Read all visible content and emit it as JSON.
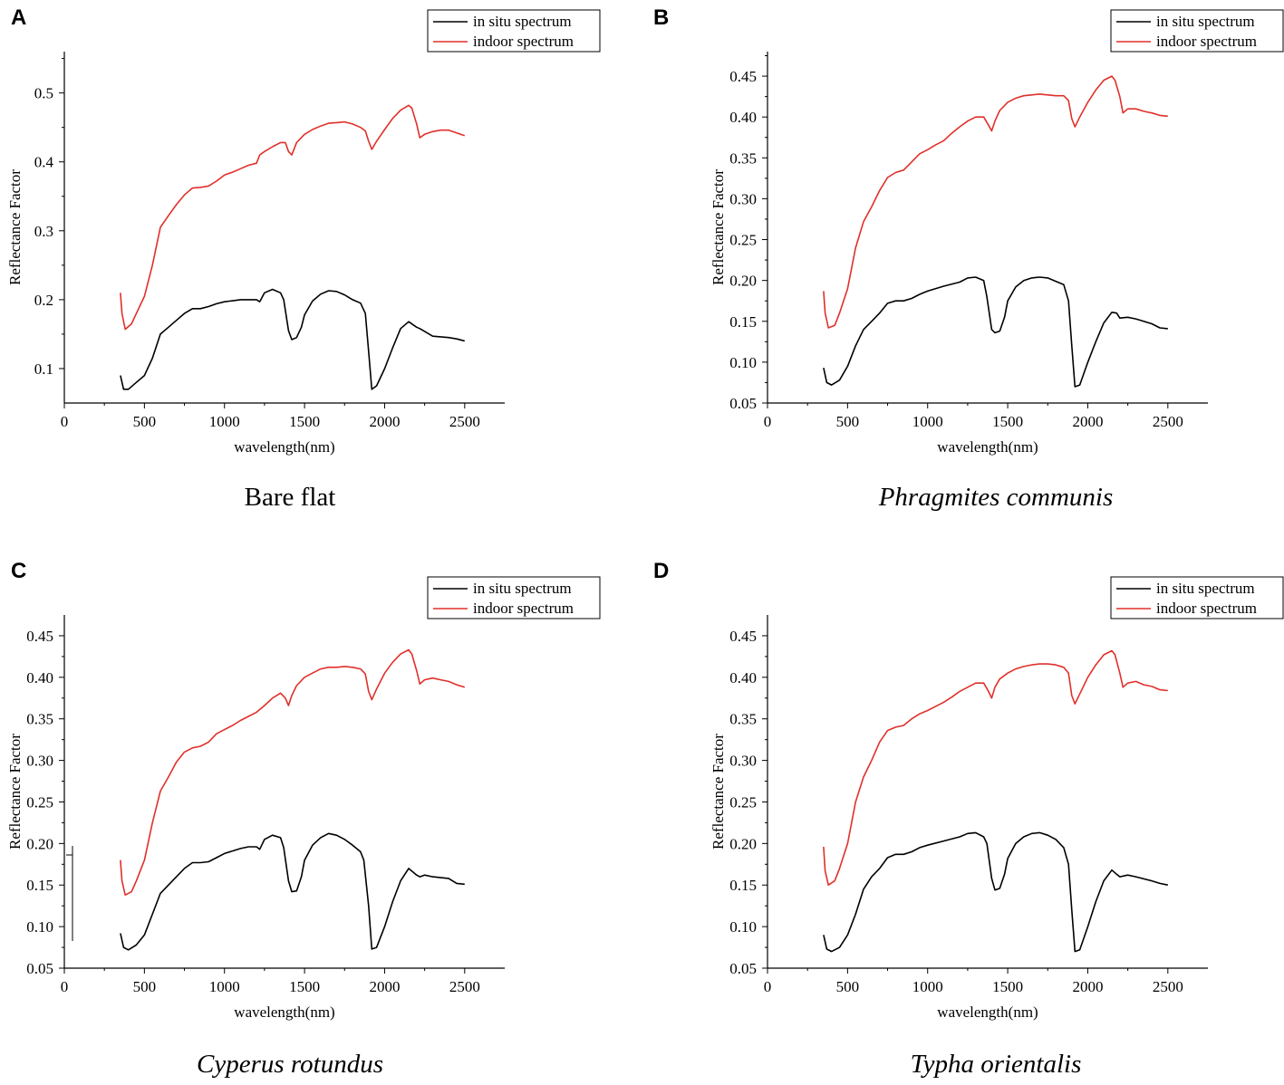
{
  "chart_data": [
    {
      "type": "line",
      "panel": "A",
      "caption": "Bare flat",
      "caption_italic": false,
      "xlabel": "wavelength(nm)",
      "ylabel": "Reflectance Factor",
      "xlim": [
        0,
        2750
      ],
      "ylim": [
        0.05,
        0.56
      ],
      "xticks": [
        0,
        500,
        1000,
        1500,
        2000,
        2500
      ],
      "xtick_labels": [
        "0",
        "500",
        "1000",
        "1500",
        "2000",
        "2500"
      ],
      "yticks": [
        0.1,
        0.2,
        0.3,
        0.4,
        0.5
      ],
      "ytick_labels": [
        "0.1",
        "0.2",
        "0.3",
        "0.4",
        "0.5"
      ],
      "legend": {
        "position": "top-right",
        "entries": [
          "in situ spectrum",
          "indoor spectrum"
        ]
      },
      "series": [
        {
          "name": "in situ spectrum",
          "color": "#000000",
          "x": [
            350,
            370,
            400,
            450,
            500,
            550,
            600,
            650,
            700,
            750,
            800,
            850,
            900,
            950,
            1000,
            1100,
            1150,
            1200,
            1220,
            1250,
            1300,
            1350,
            1370,
            1400,
            1420,
            1450,
            1480,
            1500,
            1550,
            1600,
            1650,
            1700,
            1750,
            1800,
            1850,
            1880,
            1900,
            1920,
            1950,
            2000,
            2050,
            2100,
            2150,
            2200,
            2220,
            2250,
            2300,
            2400,
            2450,
            2500
          ],
          "y": [
            0.09,
            0.07,
            0.07,
            0.08,
            0.09,
            0.115,
            0.15,
            0.16,
            0.17,
            0.18,
            0.187,
            0.187,
            0.19,
            0.194,
            0.197,
            0.2,
            0.2,
            0.2,
            0.197,
            0.21,
            0.215,
            0.21,
            0.2,
            0.155,
            0.142,
            0.145,
            0.16,
            0.178,
            0.198,
            0.208,
            0.213,
            0.212,
            0.207,
            0.2,
            0.195,
            0.18,
            0.125,
            0.07,
            0.075,
            0.1,
            0.13,
            0.158,
            0.168,
            0.16,
            0.158,
            0.154,
            0.147,
            0.145,
            0.143,
            0.14
          ]
        },
        {
          "name": "indoor spectrum",
          "color": "#e0302a",
          "x": [
            350,
            360,
            380,
            420,
            450,
            500,
            550,
            600,
            650,
            700,
            750,
            800,
            850,
            900,
            950,
            1000,
            1050,
            1100,
            1150,
            1200,
            1220,
            1250,
            1300,
            1350,
            1380,
            1400,
            1420,
            1450,
            1500,
            1550,
            1600,
            1650,
            1700,
            1750,
            1800,
            1850,
            1880,
            1900,
            1920,
            1950,
            2000,
            2050,
            2100,
            2150,
            2170,
            2200,
            2220,
            2250,
            2300,
            2350,
            2400,
            2450,
            2500
          ],
          "y": [
            0.21,
            0.18,
            0.157,
            0.165,
            0.18,
            0.205,
            0.25,
            0.305,
            0.322,
            0.338,
            0.352,
            0.362,
            0.363,
            0.365,
            0.372,
            0.381,
            0.385,
            0.39,
            0.395,
            0.398,
            0.41,
            0.415,
            0.422,
            0.428,
            0.428,
            0.415,
            0.41,
            0.428,
            0.44,
            0.447,
            0.452,
            0.456,
            0.457,
            0.458,
            0.455,
            0.45,
            0.445,
            0.43,
            0.418,
            0.43,
            0.447,
            0.463,
            0.475,
            0.482,
            0.478,
            0.455,
            0.435,
            0.44,
            0.444,
            0.446,
            0.446,
            0.442,
            0.438
          ]
        }
      ]
    },
    {
      "type": "line",
      "panel": "B",
      "caption": "Phragmites communis",
      "caption_italic": true,
      "xlabel": "wavelength(nm)",
      "ylabel": "Reflectance Factor",
      "xlim": [
        0,
        2750
      ],
      "ylim": [
        0.05,
        0.48
      ],
      "xticks": [
        0,
        500,
        1000,
        1500,
        2000,
        2500
      ],
      "xtick_labels": [
        "0",
        "500",
        "1000",
        "1500",
        "2000",
        "2500"
      ],
      "yticks": [
        0.05,
        0.1,
        0.15,
        0.2,
        0.25,
        0.3,
        0.35,
        0.4,
        0.45
      ],
      "ytick_labels": [
        "0.05",
        "0.10",
        "0.15",
        "0.20",
        "0.25",
        "0.30",
        "0.35",
        "0.40",
        "0.45"
      ],
      "legend": {
        "position": "top-right",
        "entries": [
          "in situ spectrum",
          "indoor spectrum"
        ]
      },
      "series": [
        {
          "name": "in situ spectrum",
          "color": "#000000",
          "x": [
            350,
            370,
            400,
            450,
            500,
            550,
            600,
            650,
            700,
            750,
            800,
            850,
            900,
            950,
            1000,
            1100,
            1200,
            1250,
            1300,
            1350,
            1370,
            1400,
            1420,
            1450,
            1480,
            1500,
            1550,
            1600,
            1650,
            1700,
            1750,
            1800,
            1850,
            1880,
            1900,
            1920,
            1950,
            2000,
            2050,
            2100,
            2150,
            2180,
            2200,
            2250,
            2300,
            2400,
            2450,
            2500
          ],
          "y": [
            0.093,
            0.075,
            0.072,
            0.078,
            0.095,
            0.12,
            0.14,
            0.15,
            0.16,
            0.172,
            0.175,
            0.175,
            0.178,
            0.183,
            0.187,
            0.193,
            0.198,
            0.203,
            0.204,
            0.2,
            0.18,
            0.14,
            0.136,
            0.138,
            0.155,
            0.175,
            0.192,
            0.2,
            0.203,
            0.204,
            0.203,
            0.199,
            0.195,
            0.175,
            0.12,
            0.07,
            0.072,
            0.1,
            0.125,
            0.148,
            0.161,
            0.16,
            0.154,
            0.155,
            0.153,
            0.147,
            0.142,
            0.141
          ]
        },
        {
          "name": "indoor spectrum",
          "color": "#e0302a",
          "x": [
            350,
            360,
            380,
            420,
            450,
            500,
            550,
            600,
            650,
            700,
            750,
            800,
            850,
            900,
            950,
            1000,
            1050,
            1100,
            1150,
            1200,
            1250,
            1300,
            1350,
            1380,
            1400,
            1420,
            1450,
            1500,
            1550,
            1600,
            1650,
            1700,
            1750,
            1800,
            1850,
            1880,
            1900,
            1920,
            1950,
            2000,
            2050,
            2100,
            2150,
            2170,
            2200,
            2220,
            2250,
            2300,
            2350,
            2400,
            2450,
            2500
          ],
          "y": [
            0.187,
            0.16,
            0.142,
            0.145,
            0.16,
            0.19,
            0.24,
            0.272,
            0.29,
            0.31,
            0.326,
            0.332,
            0.335,
            0.345,
            0.355,
            0.36,
            0.366,
            0.371,
            0.38,
            0.388,
            0.395,
            0.4,
            0.4,
            0.39,
            0.383,
            0.395,
            0.408,
            0.418,
            0.423,
            0.426,
            0.427,
            0.428,
            0.427,
            0.426,
            0.426,
            0.42,
            0.398,
            0.388,
            0.4,
            0.418,
            0.433,
            0.445,
            0.45,
            0.445,
            0.425,
            0.405,
            0.41,
            0.41,
            0.407,
            0.405,
            0.402,
            0.401
          ]
        }
      ]
    },
    {
      "type": "line",
      "panel": "C",
      "caption": "Cyperus rotundus",
      "caption_italic": true,
      "xlabel": "wavelength(nm)",
      "ylabel": "Reflectance Factor",
      "xlim": [
        0,
        2750
      ],
      "ylim": [
        0.05,
        0.475
      ],
      "xticks": [
        0,
        500,
        1000,
        1500,
        2000,
        2500
      ],
      "xtick_labels": [
        "0",
        "500",
        "1000",
        "1500",
        "2000",
        "2500"
      ],
      "yticks": [
        0.05,
        0.1,
        0.15,
        0.2,
        0.25,
        0.3,
        0.35,
        0.4,
        0.45
      ],
      "ytick_labels": [
        "0.05",
        "0.10",
        "0.15",
        "0.20",
        "0.25",
        "0.30",
        "0.35",
        "0.40",
        "0.45"
      ],
      "legend": {
        "position": "top-right",
        "entries": [
          "in situ spectrum",
          "indoor spectrum"
        ]
      },
      "series": [
        {
          "name": "in situ spectrum",
          "color": "#000000",
          "x": [
            350,
            370,
            400,
            450,
            500,
            550,
            600,
            650,
            700,
            750,
            800,
            850,
            900,
            950,
            1000,
            1100,
            1150,
            1200,
            1220,
            1250,
            1300,
            1350,
            1370,
            1400,
            1420,
            1450,
            1480,
            1500,
            1550,
            1600,
            1650,
            1700,
            1750,
            1800,
            1850,
            1870,
            1900,
            1920,
            1950,
            2000,
            2050,
            2100,
            2150,
            2200,
            2220,
            2250,
            2300,
            2400,
            2450,
            2500
          ],
          "y": [
            0.092,
            0.075,
            0.072,
            0.078,
            0.09,
            0.115,
            0.14,
            0.15,
            0.16,
            0.17,
            0.177,
            0.177,
            0.178,
            0.183,
            0.188,
            0.194,
            0.196,
            0.196,
            0.193,
            0.205,
            0.21,
            0.207,
            0.195,
            0.155,
            0.142,
            0.143,
            0.16,
            0.18,
            0.198,
            0.207,
            0.212,
            0.21,
            0.205,
            0.198,
            0.19,
            0.18,
            0.125,
            0.073,
            0.075,
            0.1,
            0.13,
            0.155,
            0.17,
            0.162,
            0.16,
            0.162,
            0.16,
            0.158,
            0.152,
            0.151
          ]
        },
        {
          "name": "indoor spectrum",
          "color": "#e0302a",
          "x": [
            350,
            360,
            380,
            420,
            450,
            500,
            550,
            600,
            650,
            700,
            750,
            800,
            850,
            900,
            950,
            1000,
            1050,
            1100,
            1150,
            1200,
            1250,
            1300,
            1350,
            1380,
            1400,
            1420,
            1450,
            1500,
            1550,
            1600,
            1650,
            1700,
            1750,
            1800,
            1850,
            1880,
            1900,
            1920,
            1950,
            2000,
            2050,
            2100,
            2150,
            2170,
            2200,
            2220,
            2250,
            2300,
            2350,
            2400,
            2450,
            2500
          ],
          "y": [
            0.18,
            0.155,
            0.138,
            0.142,
            0.155,
            0.18,
            0.225,
            0.263,
            0.28,
            0.298,
            0.31,
            0.315,
            0.317,
            0.322,
            0.332,
            0.337,
            0.342,
            0.348,
            0.353,
            0.358,
            0.366,
            0.375,
            0.381,
            0.375,
            0.366,
            0.378,
            0.39,
            0.4,
            0.405,
            0.41,
            0.412,
            0.412,
            0.413,
            0.412,
            0.41,
            0.404,
            0.383,
            0.373,
            0.386,
            0.405,
            0.418,
            0.428,
            0.433,
            0.428,
            0.408,
            0.392,
            0.397,
            0.399,
            0.397,
            0.395,
            0.391,
            0.388
          ]
        }
      ]
    },
    {
      "type": "line",
      "panel": "D",
      "caption": "Typha orientalis",
      "caption_italic": true,
      "xlabel": "wavelength(nm)",
      "ylabel": "Reflectance Factor",
      "xlim": [
        0,
        2750
      ],
      "ylim": [
        0.05,
        0.475
      ],
      "xticks": [
        0,
        500,
        1000,
        1500,
        2000,
        2500
      ],
      "xtick_labels": [
        "0",
        "500",
        "1000",
        "1500",
        "2000",
        "2500"
      ],
      "yticks": [
        0.05,
        0.1,
        0.15,
        0.2,
        0.25,
        0.3,
        0.35,
        0.4,
        0.45
      ],
      "ytick_labels": [
        "0.05",
        "0.10",
        "0.15",
        "0.20",
        "0.25",
        "0.30",
        "0.35",
        "0.40",
        "0.45"
      ],
      "legend": {
        "position": "top-right",
        "entries": [
          "in situ spectrum",
          "indoor spectrum"
        ]
      },
      "series": [
        {
          "name": "in situ spectrum",
          "color": "#000000",
          "x": [
            350,
            370,
            400,
            450,
            500,
            550,
            600,
            650,
            700,
            750,
            800,
            850,
            900,
            950,
            1000,
            1100,
            1200,
            1250,
            1300,
            1350,
            1370,
            1400,
            1420,
            1450,
            1480,
            1500,
            1550,
            1600,
            1650,
            1700,
            1750,
            1800,
            1850,
            1880,
            1900,
            1920,
            1950,
            2000,
            2050,
            2100,
            2150,
            2180,
            2200,
            2250,
            2300,
            2400,
            2450,
            2500
          ],
          "y": [
            0.09,
            0.073,
            0.07,
            0.075,
            0.09,
            0.115,
            0.145,
            0.16,
            0.17,
            0.183,
            0.187,
            0.187,
            0.19,
            0.195,
            0.198,
            0.203,
            0.208,
            0.212,
            0.213,
            0.208,
            0.2,
            0.158,
            0.144,
            0.146,
            0.163,
            0.182,
            0.2,
            0.208,
            0.212,
            0.213,
            0.21,
            0.205,
            0.195,
            0.175,
            0.12,
            0.07,
            0.072,
            0.1,
            0.13,
            0.155,
            0.168,
            0.163,
            0.16,
            0.162,
            0.16,
            0.155,
            0.152,
            0.15
          ]
        },
        {
          "name": "indoor spectrum",
          "color": "#e0302a",
          "x": [
            350,
            360,
            380,
            420,
            450,
            500,
            550,
            600,
            650,
            700,
            750,
            800,
            850,
            900,
            950,
            1000,
            1050,
            1100,
            1150,
            1200,
            1250,
            1300,
            1350,
            1380,
            1400,
            1420,
            1450,
            1500,
            1550,
            1600,
            1650,
            1700,
            1750,
            1800,
            1850,
            1880,
            1900,
            1920,
            1950,
            2000,
            2050,
            2100,
            2150,
            2170,
            2200,
            2220,
            2250,
            2300,
            2350,
            2400,
            2450,
            2500
          ],
          "y": [
            0.196,
            0.167,
            0.15,
            0.155,
            0.17,
            0.2,
            0.25,
            0.28,
            0.3,
            0.322,
            0.336,
            0.34,
            0.342,
            0.35,
            0.356,
            0.36,
            0.365,
            0.37,
            0.376,
            0.383,
            0.388,
            0.393,
            0.393,
            0.383,
            0.375,
            0.388,
            0.398,
            0.405,
            0.41,
            0.413,
            0.415,
            0.416,
            0.416,
            0.415,
            0.412,
            0.405,
            0.378,
            0.368,
            0.38,
            0.4,
            0.415,
            0.427,
            0.432,
            0.427,
            0.405,
            0.388,
            0.393,
            0.395,
            0.391,
            0.389,
            0.385,
            0.384
          ]
        }
      ]
    }
  ]
}
